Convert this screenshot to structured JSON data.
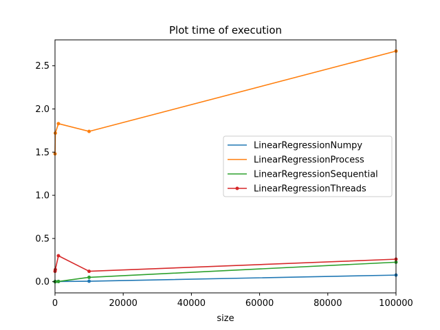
{
  "chart_data": {
    "type": "line",
    "title": "Plot time of execution",
    "xlabel": "size",
    "ylabel": "",
    "xlim": [
      0,
      100000
    ],
    "ylim": [
      -0.13,
      2.8
    ],
    "xticks": [
      0,
      20000,
      40000,
      60000,
      80000,
      100000
    ],
    "yticks": [
      0.0,
      0.5,
      1.0,
      1.5,
      2.0,
      2.5
    ],
    "xtick_labels": [
      "0",
      "20000",
      "40000",
      "60000",
      "80000",
      "100000"
    ],
    "ytick_labels": [
      "0.0",
      "0.5",
      "1.0",
      "1.5",
      "2.0",
      "2.5"
    ],
    "grid": false,
    "legend_position": "center-right",
    "series": [
      {
        "name": "LinearRegressionNumpy",
        "color": "#1f77b4",
        "x": [
          10,
          100,
          1000,
          10000,
          100000
        ],
        "y": [
          0.0,
          0.0,
          0.002,
          0.005,
          0.076
        ]
      },
      {
        "name": "LinearRegressionProcess",
        "color": "#ff7f0e",
        "x": [
          10,
          100,
          1000,
          10000,
          100000
        ],
        "y": [
          1.48,
          1.72,
          1.83,
          1.74,
          2.67
        ]
      },
      {
        "name": "LinearRegressionSequential",
        "color": "#2ca02c",
        "x": [
          10,
          100,
          1000,
          10000,
          100000
        ],
        "y": [
          0.0,
          0.0,
          0.002,
          0.05,
          0.225
        ]
      },
      {
        "name": "LinearRegressionThreads",
        "color": "#d62728",
        "x": [
          10,
          100,
          1000,
          10000,
          100000
        ],
        "y": [
          0.12,
          0.14,
          0.3,
          0.12,
          0.26
        ]
      }
    ]
  }
}
